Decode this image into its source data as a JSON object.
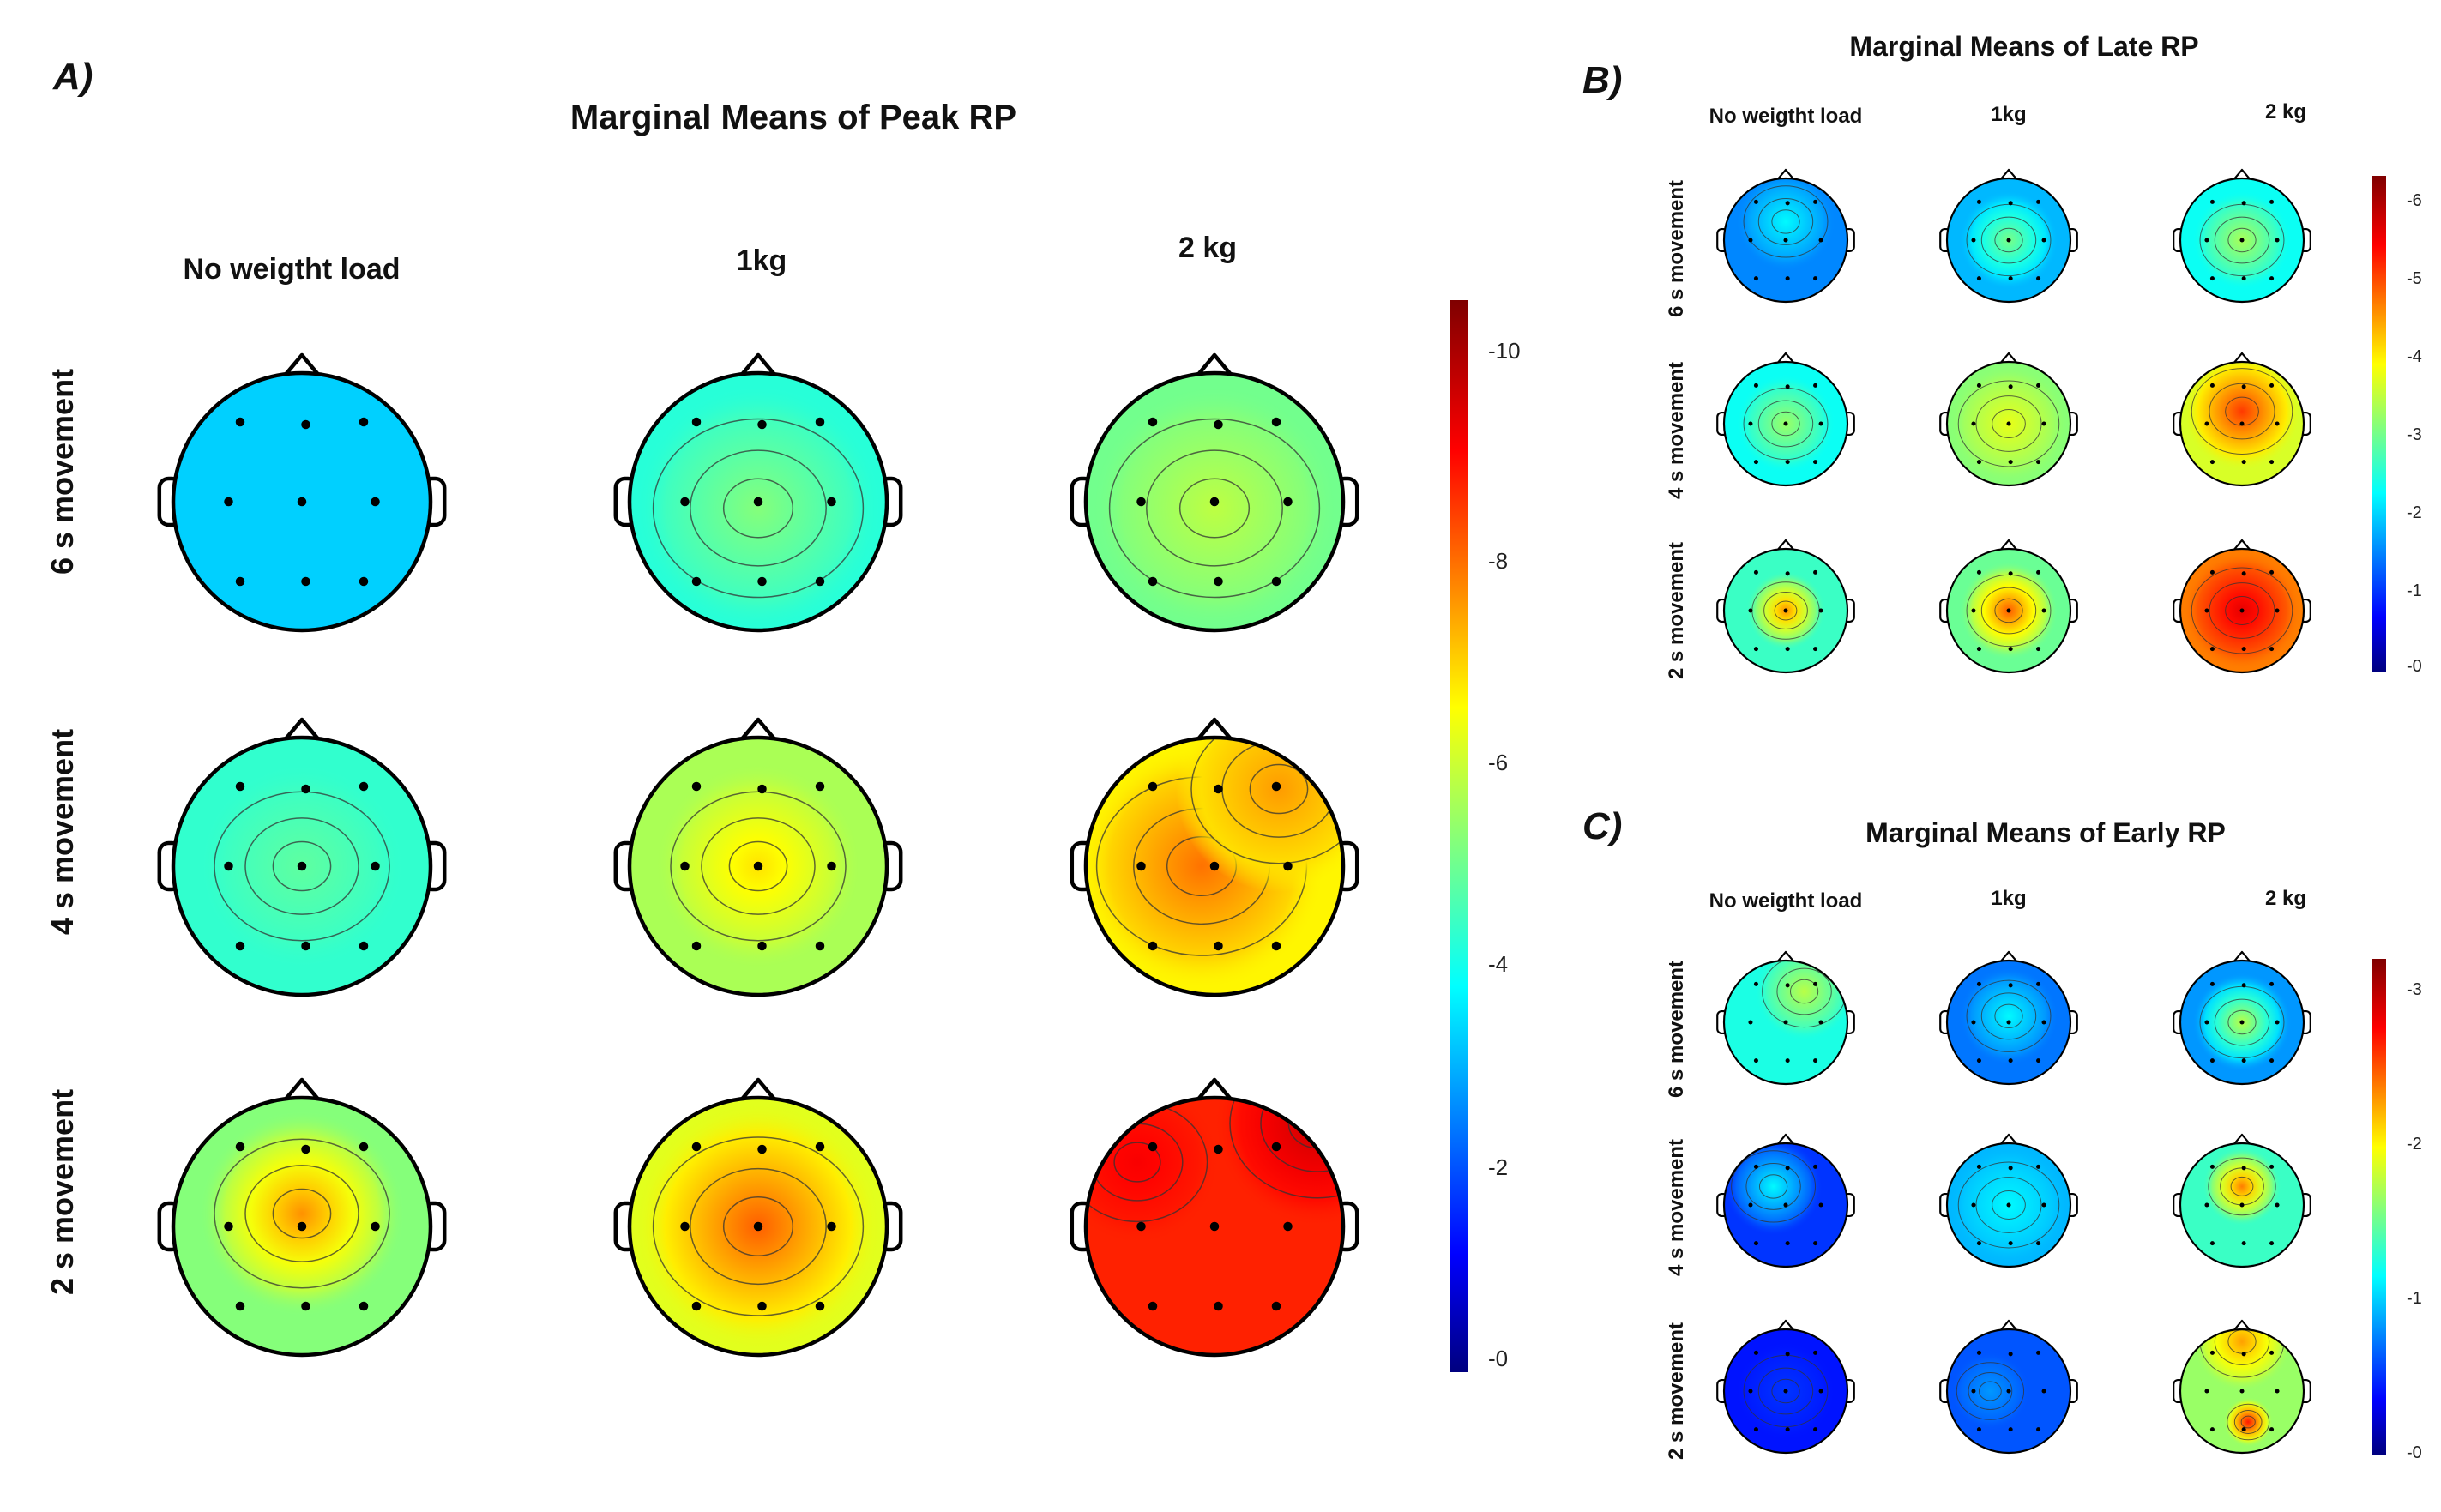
{
  "panels": [
    {
      "id": "A",
      "label": "A)",
      "title": "Marginal Means of Peak RP",
      "columns": [
        "No weigtht load",
        "1kg",
        "2 kg"
      ],
      "rows": [
        "6 s movement",
        "4 s movement",
        "2 s movement"
      ],
      "colorbar_ticks": [
        "-10",
        "-8",
        "-6",
        "-4",
        "-2",
        "-0"
      ],
      "colorbar_range": [
        0,
        10.5
      ],
      "maps": [
        [
          {
            "base": 3.3,
            "blobs": []
          },
          {
            "base": 4.2,
            "blobs": [
              [
                0.0,
                0.05,
                5.2,
                0.6
              ]
            ]
          },
          {
            "base": 5.0,
            "blobs": [
              [
                0.0,
                0.05,
                5.8,
                0.6
              ]
            ]
          }
        ],
        [
          {
            "base": 4.3,
            "blobs": [
              [
                0.0,
                0.0,
                4.8,
                0.5
              ]
            ]
          },
          {
            "base": 5.6,
            "blobs": [
              [
                0.0,
                0.0,
                6.8,
                0.5
              ]
            ]
          },
          {
            "base": 6.6,
            "blobs": [
              [
                -0.1,
                0.0,
                7.9,
                0.6
              ],
              [
                0.5,
                -0.6,
                7.5,
                0.5
              ]
            ]
          }
        ],
        [
          {
            "base": 5.2,
            "blobs": [
              [
                0.0,
                -0.1,
                7.6,
                0.5
              ]
            ]
          },
          {
            "base": 6.2,
            "blobs": [
              [
                0.0,
                0.0,
                8.1,
                0.6
              ]
            ]
          },
          {
            "base": 8.7,
            "blobs": [
              [
                0.8,
                -0.8,
                9.6,
                0.5
              ],
              [
                -0.6,
                -0.5,
                9.1,
                0.4
              ]
            ]
          }
        ]
      ]
    },
    {
      "id": "B",
      "label": "B)",
      "title": "Marginal Means of Late RP",
      "columns": [
        "No weigtht load",
        "1kg",
        "2 kg"
      ],
      "rows": [
        "6 s movement",
        "4 s movement",
        "2 s movement"
      ],
      "colorbar_ticks": [
        "-6",
        "-5",
        "-4",
        "-3",
        "-2",
        "-1",
        "-0"
      ],
      "colorbar_range": [
        0,
        6.2
      ],
      "maps": [
        [
          {
            "base": 1.5,
            "blobs": [
              [
                0.0,
                -0.3,
                2.2,
                0.5
              ]
            ]
          },
          {
            "base": 1.8,
            "blobs": [
              [
                0.0,
                0.0,
                3.0,
                0.5
              ]
            ]
          },
          {
            "base": 2.3,
            "blobs": [
              [
                0.0,
                0.0,
                3.3,
                0.5
              ]
            ]
          }
        ],
        [
          {
            "base": 2.3,
            "blobs": [
              [
                0.0,
                0.0,
                3.2,
                0.5
              ]
            ]
          },
          {
            "base": 3.1,
            "blobs": [
              [
                0.0,
                0.0,
                3.7,
                0.6
              ]
            ]
          },
          {
            "base": 3.6,
            "blobs": [
              [
                0.0,
                -0.2,
                5.0,
                0.6
              ]
            ]
          }
        ],
        [
          {
            "base": 2.6,
            "blobs": [
              [
                0.0,
                0.0,
                4.5,
                0.4
              ]
            ]
          },
          {
            "base": 2.9,
            "blobs": [
              [
                0.0,
                0.0,
                4.8,
                0.5
              ]
            ]
          },
          {
            "base": 4.6,
            "blobs": [
              [
                0.0,
                0.0,
                5.5,
                0.6
              ]
            ]
          }
        ]
      ]
    },
    {
      "id": "C",
      "label": "C)",
      "title": "Marginal Means of Early RP",
      "columns": [
        "No weigtht load",
        "1kg",
        "2 kg"
      ],
      "rows": [
        "6 s movement",
        "4 s movement",
        "2 s movement"
      ],
      "colorbar_ticks": [
        "-3",
        "-2",
        "-1",
        "-0"
      ],
      "colorbar_range": [
        0,
        3.1
      ],
      "maps": [
        [
          {
            "base": 1.2,
            "blobs": [
              [
                0.3,
                -0.5,
                1.7,
                0.5
              ]
            ]
          },
          {
            "base": 0.7,
            "blobs": [
              [
                0.0,
                -0.1,
                1.1,
                0.5
              ]
            ]
          },
          {
            "base": 0.8,
            "blobs": [
              [
                0.0,
                0.0,
                1.7,
                0.5
              ]
            ]
          }
        ],
        [
          {
            "base": 0.5,
            "blobs": [
              [
                -0.2,
                -0.3,
                1.1,
                0.5
              ]
            ]
          },
          {
            "base": 0.9,
            "blobs": [
              [
                0.0,
                0.0,
                1.1,
                0.6
              ]
            ]
          },
          {
            "base": 1.3,
            "blobs": [
              [
                0.0,
                -0.3,
                2.3,
                0.4
              ]
            ]
          }
        ],
        [
          {
            "base": 0.4,
            "blobs": [
              [
                0.0,
                0.0,
                0.5,
                0.5
              ]
            ]
          },
          {
            "base": 0.6,
            "blobs": [
              [
                -0.3,
                0.0,
                0.8,
                0.4
              ]
            ]
          },
          {
            "base": 1.6,
            "blobs": [
              [
                0.0,
                -0.8,
                2.2,
                0.5
              ],
              [
                0.1,
                0.5,
                2.6,
                0.25
              ]
            ]
          }
        ]
      ]
    }
  ],
  "colors": {
    "background": "#ffffff",
    "text": "#111111",
    "head_outline": "#000000",
    "contour": "#333333",
    "electrode": "#000000"
  }
}
